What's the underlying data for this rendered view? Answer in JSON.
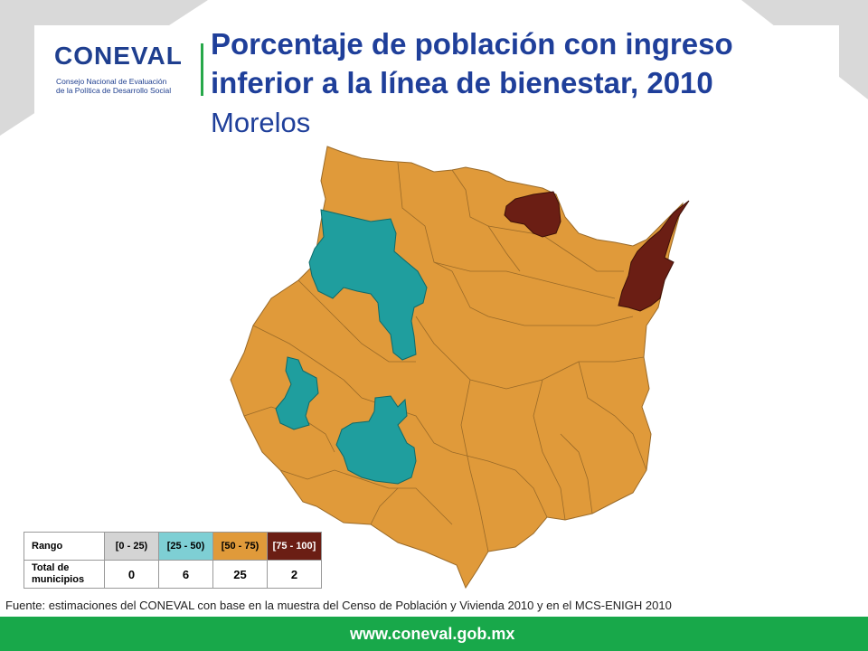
{
  "logo": {
    "word": "CONEVAL",
    "sub1": "Consejo Nacional de Evaluación",
    "sub2": "de la Política de Desarrollo Social"
  },
  "title": {
    "line1": "Porcentaje de población con ingreso",
    "line2": "inferior a la línea de bienestar, 2010",
    "subtitle": "Morelos"
  },
  "colors": {
    "c0_25": "#d4d4d4",
    "c25_50": "#1f9e9e",
    "c50_75": "#e09a3a",
    "c75_100": "#6b1e14",
    "title": "#1f3f9a",
    "footer": "#18a84a"
  },
  "legend": {
    "header_label": "Rango",
    "ranges": [
      "[0 - 25)",
      "[25 - 50)",
      "[50 - 75)",
      "[75 - 100]"
    ],
    "count_label_1": "Total de",
    "count_label_2": "municipios",
    "counts": [
      "0",
      "6",
      "25",
      "2"
    ]
  },
  "source": "Fuente: estimaciones del CONEVAL con base en la muestra del Censo de Población y Vivienda 2010 y en el MCS-ENIGH 2010",
  "footer": {
    "url": "www.coneval.gob.mx"
  }
}
